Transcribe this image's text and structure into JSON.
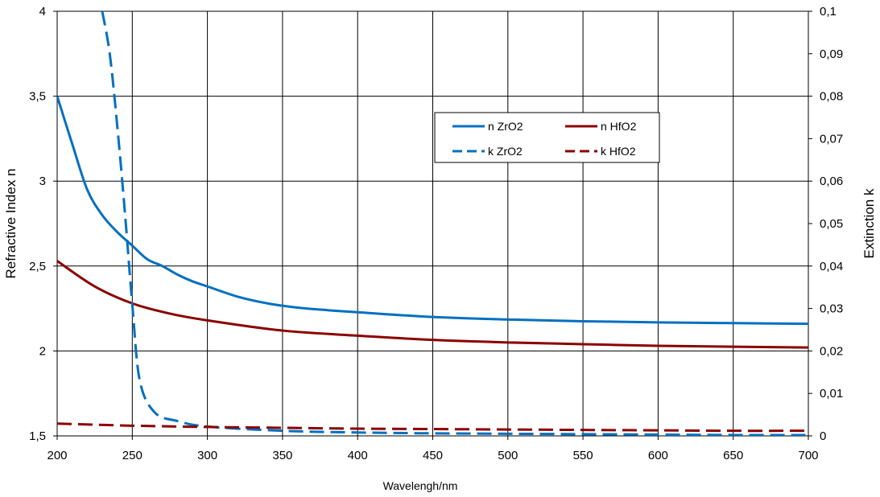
{
  "chart_data": {
    "type": "line",
    "title": "",
    "xlabel": "Wavelengh/nm",
    "ylabel_left": "Refractive Index n",
    "ylabel_right": "Extinction k",
    "xlim": [
      200,
      700
    ],
    "ylim_left": [
      1.5,
      4
    ],
    "ylim_right": [
      0,
      0.1
    ],
    "x_ticks": [
      "200",
      "250",
      "300",
      "350",
      "400",
      "450",
      "500",
      "550",
      "600",
      "650",
      "700"
    ],
    "y_left_ticks": [
      "1,5",
      "2",
      "2,5",
      "3",
      "3,5",
      "4"
    ],
    "y_right_ticks": [
      "0",
      "0,01",
      "0,02",
      "0,03",
      "0,04",
      "0,05",
      "0,06",
      "0,07",
      "0,08",
      "0,09",
      "0,1"
    ],
    "grid": true,
    "legend_position": "upper-center-right",
    "series": [
      {
        "name": "n ZrO2",
        "axis": "left",
        "color": "#0070C0",
        "style": "solid",
        "x": [
          200,
          210,
          220,
          230,
          240,
          250,
          260,
          270,
          280,
          290,
          300,
          320,
          340,
          360,
          380,
          400,
          450,
          500,
          550,
          600,
          650,
          700
        ],
        "y": [
          3.5,
          3.22,
          2.95,
          2.8,
          2.7,
          2.62,
          2.54,
          2.5,
          2.45,
          2.41,
          2.38,
          2.32,
          2.28,
          2.255,
          2.24,
          2.228,
          2.2,
          2.185,
          2.175,
          2.168,
          2.164,
          2.16
        ]
      },
      {
        "name": "n HfO2",
        "axis": "left",
        "color": "#8B0000",
        "style": "solid",
        "x": [
          200,
          225,
          250,
          275,
          300,
          350,
          400,
          450,
          500,
          550,
          600,
          650,
          700
        ],
        "y": [
          2.53,
          2.38,
          2.28,
          2.22,
          2.18,
          2.12,
          2.09,
          2.065,
          2.05,
          2.04,
          2.03,
          2.025,
          2.02
        ]
      },
      {
        "name": "k ZrO2",
        "axis": "right",
        "color": "#0070C0",
        "style": "dashed",
        "x": [
          230,
          235,
          240,
          245,
          250,
          255,
          265,
          280,
          300,
          350,
          400,
          450,
          500,
          550,
          600,
          650,
          700
        ],
        "y": [
          0.1,
          0.09,
          0.073,
          0.053,
          0.031,
          0.013,
          0.0055,
          0.0035,
          0.0022,
          0.0012,
          0.0008,
          0.0006,
          0.0005,
          0.0004,
          0.0003,
          0.0002,
          0.0002
        ]
      },
      {
        "name": "k HfO2",
        "axis": "right",
        "color": "#8B0000",
        "style": "dashed",
        "x": [
          200,
          250,
          300,
          350,
          400,
          450,
          500,
          550,
          600,
          650,
          700
        ],
        "y": [
          0.0029,
          0.0024,
          0.0021,
          0.0019,
          0.0017,
          0.0016,
          0.0015,
          0.0014,
          0.0013,
          0.0012,
          0.0012
        ]
      }
    ]
  }
}
